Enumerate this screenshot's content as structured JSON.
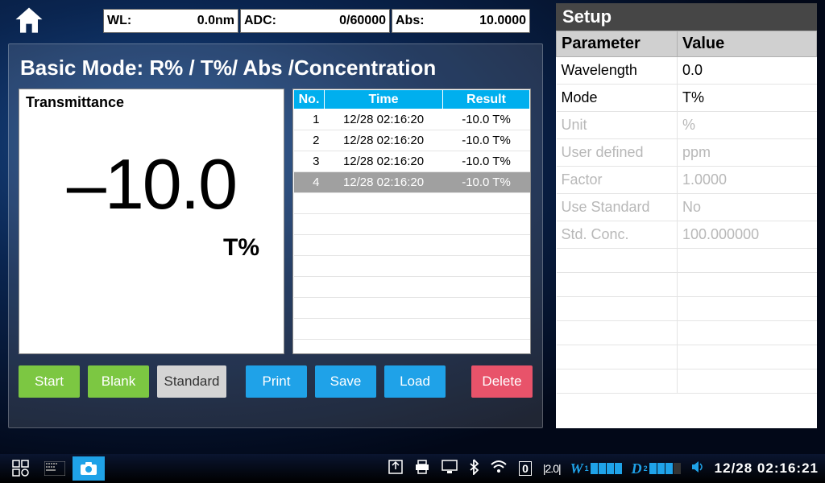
{
  "status": {
    "wl_label": "WL:",
    "wl_value": "0.0nm",
    "adc_label": "ADC:",
    "adc_value": "0/60000",
    "abs_label": "Abs:",
    "abs_value": "10.0000"
  },
  "main": {
    "title": "Basic Mode: R% / T%/ Abs /Concentration",
    "display_label": "Transmittance",
    "big_value": "–10.0",
    "unit": "T%"
  },
  "results": {
    "headers": {
      "no": "No.",
      "time": "Time",
      "result": "Result"
    },
    "rows": [
      {
        "no": "1",
        "time": "12/28 02:16:20",
        "result": "-10.0 T%",
        "selected": false
      },
      {
        "no": "2",
        "time": "12/28 02:16:20",
        "result": "-10.0 T%",
        "selected": false
      },
      {
        "no": "3",
        "time": "12/28 02:16:20",
        "result": "-10.0 T%",
        "selected": false
      },
      {
        "no": "4",
        "time": "12/28 02:16:20",
        "result": "-10.0 T%",
        "selected": true
      }
    ]
  },
  "buttons": {
    "start": "Start",
    "blank": "Blank",
    "standard": "Standard",
    "print": "Print",
    "save": "Save",
    "load": "Load",
    "delete": "Delete"
  },
  "setup": {
    "title": "Setup",
    "header_param": "Parameter",
    "header_value": "Value",
    "rows": [
      {
        "param": "Wavelength",
        "value": "0.0",
        "disabled": false
      },
      {
        "param": "Mode",
        "value": "T%",
        "disabled": false
      },
      {
        "param": "Unit",
        "value": "%",
        "disabled": true
      },
      {
        "param": "User defined",
        "value": "ppm",
        "disabled": true
      },
      {
        "param": "Factor",
        "value": "1.0000",
        "disabled": true
      },
      {
        "param": "Use Standard",
        "value": "No",
        "disabled": true
      },
      {
        "param": "Std. Conc.",
        "value": "100.000000",
        "disabled": true
      }
    ]
  },
  "taskbar": {
    "w_label": "W",
    "d_label": "D",
    "firmware": "|2.0|",
    "datetime": "12/28 02:16:21"
  },
  "colors": {
    "accent_blue": "#1fa2e8",
    "header_blue": "#00afee",
    "green": "#7cc742",
    "red": "#e8536a",
    "gray": "#d4d4d4",
    "dark_header": "#464646"
  }
}
